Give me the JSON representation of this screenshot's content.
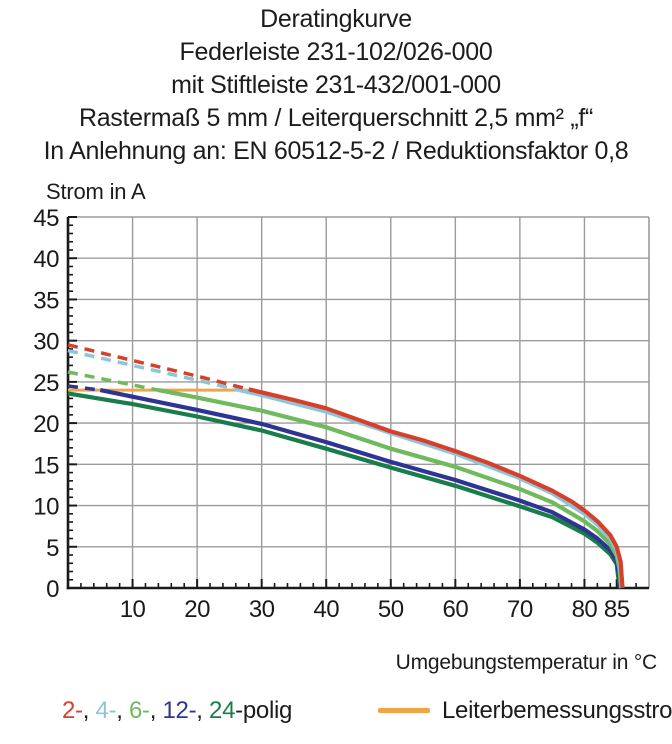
{
  "title_lines": [
    "Deratingkurve",
    "Federleiste 231-102/026-000",
    "mit Stiftleiste 231-432/001-000",
    "Rastermaß 5 mm / Leiterquerschnitt 2,5 mm² „f“",
    "In Anlehnung an: EN 60512-5-2 / Reduktionsfaktor 0,8"
  ],
  "colors": {
    "red_2pole": "#d6402b",
    "cyan_4pole": "#8cc5da",
    "green_6pole": "#6fba5c",
    "navy_12pole": "#2e3494",
    "darkgreen_24pole": "#187d4b",
    "orange_rated": "#f2a444",
    "grid": "#9b9b9b",
    "axis": "#1a1a1a"
  },
  "chart_data": {
    "type": "line",
    "title": "Deratingkurve",
    "xlabel": "Umgebungstemperatur in °C",
    "ylabel": "Strom in A",
    "xlim": [
      0,
      90
    ],
    "ylim": [
      0,
      45
    ],
    "x_gridlines": [
      10,
      20,
      30,
      40,
      50,
      60,
      70,
      80
    ],
    "y_gridlines": [
      5,
      10,
      15,
      20,
      25,
      30,
      35,
      40,
      45
    ],
    "x_ticks_labeled": [
      10,
      20,
      30,
      40,
      50,
      60,
      70,
      80,
      85
    ],
    "y_ticks_labeled": [
      0,
      5,
      10,
      15,
      20,
      25,
      30,
      35,
      40,
      45
    ],
    "x_minor_step": 2,
    "y_minor_step": 1,
    "grid": true,
    "legend_position": "bottom",
    "series": [
      {
        "name": "Leiterbemessungsstrom",
        "color": "#f2a444",
        "width": 3,
        "points": [
          [
            0,
            24
          ],
          [
            28.5,
            24
          ]
        ]
      },
      {
        "name": "24-polig",
        "color": "#187d4b",
        "width": 4.2,
        "points": [
          [
            0,
            23.6
          ],
          [
            10,
            22.3
          ],
          [
            20,
            20.8
          ],
          [
            30,
            19.1
          ],
          [
            40,
            16.9
          ],
          [
            50,
            14.6
          ],
          [
            60,
            12.4
          ],
          [
            70,
            9.9
          ],
          [
            75,
            8.6
          ],
          [
            80,
            6.6
          ],
          [
            82,
            5.5
          ],
          [
            84,
            4.1
          ],
          [
            85,
            2.9
          ],
          [
            85.2,
            1.5
          ],
          [
            85.5,
            0
          ]
        ]
      },
      {
        "name": "12-polig",
        "color": "#2e3494",
        "width": 4.2,
        "dashed_points": [
          [
            0,
            24.5
          ],
          [
            5,
            24.0
          ]
        ],
        "points": [
          [
            5,
            24.0
          ],
          [
            10,
            23.2
          ],
          [
            20,
            21.6
          ],
          [
            30,
            19.9
          ],
          [
            40,
            17.7
          ],
          [
            50,
            15.3
          ],
          [
            60,
            13.1
          ],
          [
            70,
            10.6
          ],
          [
            75,
            9.2
          ],
          [
            80,
            7.1
          ],
          [
            82,
            6.0
          ],
          [
            84,
            4.6
          ],
          [
            85,
            3.3
          ],
          [
            85.3,
            1.8
          ],
          [
            85.6,
            0
          ]
        ]
      },
      {
        "name": "6-polig",
        "color": "#6fba5c",
        "width": 4.2,
        "dashed_points": [
          [
            0,
            26.2
          ],
          [
            7,
            25.1
          ],
          [
            14,
            24.0
          ]
        ],
        "points": [
          [
            14,
            24.0
          ],
          [
            20,
            23.1
          ],
          [
            30,
            21.5
          ],
          [
            40,
            19.5
          ],
          [
            50,
            16.9
          ],
          [
            60,
            14.7
          ],
          [
            70,
            12.0
          ],
          [
            75,
            10.4
          ],
          [
            80,
            8.1
          ],
          [
            82,
            6.9
          ],
          [
            84,
            5.3
          ],
          [
            85,
            3.9
          ],
          [
            85.4,
            2.4
          ],
          [
            85.7,
            0
          ]
        ]
      },
      {
        "name": "4-polig",
        "color": "#8cc5da",
        "width": 4.2,
        "dashed_points": [
          [
            0,
            28.8
          ],
          [
            10,
            27.0
          ],
          [
            20,
            25.2
          ],
          [
            26.5,
            24.0
          ]
        ],
        "points": [
          [
            26.5,
            24.0
          ],
          [
            30,
            23.4
          ],
          [
            40,
            21.4
          ],
          [
            50,
            18.8
          ],
          [
            60,
            16.3
          ],
          [
            70,
            13.3
          ],
          [
            75,
            11.5
          ],
          [
            80,
            9.0
          ],
          [
            82,
            7.7
          ],
          [
            84,
            6.0
          ],
          [
            85,
            4.6
          ],
          [
            85.5,
            2.9
          ],
          [
            85.8,
            0
          ]
        ]
      },
      {
        "name": "2-polig",
        "color": "#d6402b",
        "width": 4.2,
        "dashed_points": [
          [
            0,
            29.5
          ],
          [
            10,
            27.6
          ],
          [
            20,
            25.7
          ],
          [
            28,
            24.1
          ]
        ],
        "points": [
          [
            28,
            24.1
          ],
          [
            35,
            22.8
          ],
          [
            40,
            21.8
          ],
          [
            45,
            20.4
          ],
          [
            50,
            19.0
          ],
          [
            55,
            17.9
          ],
          [
            60,
            16.6
          ],
          [
            65,
            15.2
          ],
          [
            70,
            13.6
          ],
          [
            75,
            11.8
          ],
          [
            78,
            10.5
          ],
          [
            80,
            9.4
          ],
          [
            82,
            8.1
          ],
          [
            84,
            6.4
          ],
          [
            85,
            5.0
          ],
          [
            85.6,
            3.2
          ],
          [
            85.9,
            0
          ]
        ]
      }
    ]
  },
  "legend": {
    "pole_items": [
      {
        "text": "2-",
        "color": "#d6402b"
      },
      {
        "text": ", ",
        "color": "#1c1c1c"
      },
      {
        "text": "4-",
        "color": "#8cc5da"
      },
      {
        "text": ", ",
        "color": "#1c1c1c"
      },
      {
        "text": "6-",
        "color": "#6fba5c"
      },
      {
        "text": ", ",
        "color": "#1c1c1c"
      },
      {
        "text": "12-",
        "color": "#2e3494"
      },
      {
        "text": ", ",
        "color": "#1c1c1c"
      },
      {
        "text": "24",
        "color": "#187d4b"
      },
      {
        "text": "-polig",
        "color": "#1c1c1c"
      }
    ],
    "rated_label": "Leiterbemessungsstrom"
  }
}
